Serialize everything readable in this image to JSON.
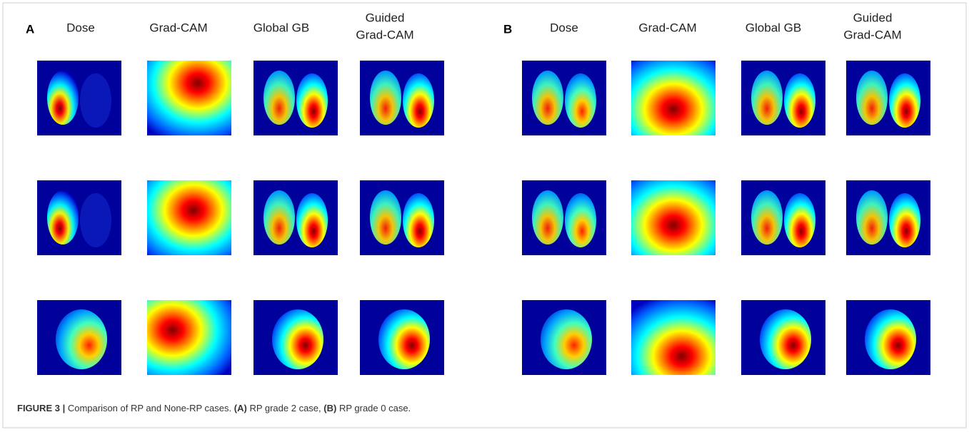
{
  "panels": [
    {
      "label": "A",
      "columns": [
        [
          "Dose"
        ],
        [
          "Grad-CAM"
        ],
        [
          "Global GB"
        ],
        [
          "Guided",
          "Grad-CAM"
        ]
      ]
    },
    {
      "label": "B",
      "columns": [
        [
          "Dose"
        ],
        [
          "Grad-CAM"
        ],
        [
          "Global GB"
        ],
        [
          "Guided",
          "Grad-CAM"
        ]
      ]
    }
  ],
  "caption": {
    "figure_label": "FIGURE 3 |",
    "text": "Comparison of RP and None-RP cases.",
    "parts": [
      {
        "label": "(A)",
        "text": "RP grade 2 case,"
      },
      {
        "label": "(B)",
        "text": "RP grade 0 case."
      }
    ]
  }
}
